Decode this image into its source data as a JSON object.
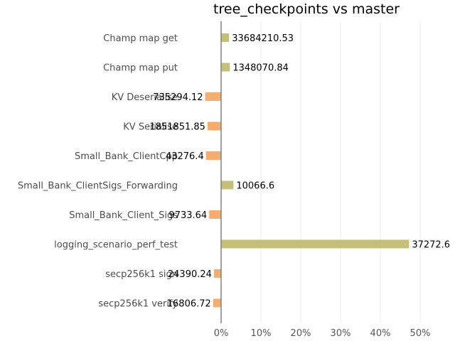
{
  "chart_data": {
    "type": "bar",
    "orientation": "horizontal",
    "title": "tree_checkpoints vs master",
    "xlabel": "",
    "ylabel": "",
    "xlim": [
      -2,
      50
    ],
    "xticks": [
      0,
      10,
      20,
      30,
      40,
      50
    ],
    "xtick_labels": [
      "0%",
      "10%",
      "20%",
      "30%",
      "40%",
      "50%"
    ],
    "grid": "vertical",
    "categories": [
      "Champ map get",
      "Champ map put",
      "KV Deserialise",
      "KV Serialise",
      "Small_Bank_ClientCpp",
      "Small_Bank_ClientSigs_Forwarding",
      "Small_Bank_Client_Sigs",
      "logging_scenario_perf_test",
      "secp256k1 sign",
      "secp256k1 verify"
    ],
    "values": [
      2.0,
      2.2,
      -4.0,
      -3.4,
      -3.8,
      3.1,
      -3.0,
      47.2,
      -1.8,
      -2.0
    ],
    "data_labels": [
      "33684210.53",
      "1348070.84",
      "735294.12",
      "1851851.85",
      "43276.4",
      "10066.6",
      "9733.64",
      "37272.6",
      "24390.24",
      "16806.72"
    ],
    "colors": {
      "positive": "#c5bf7a",
      "negative": "#f5ad6f",
      "axis": "#808080",
      "grid": "#ececec"
    }
  }
}
